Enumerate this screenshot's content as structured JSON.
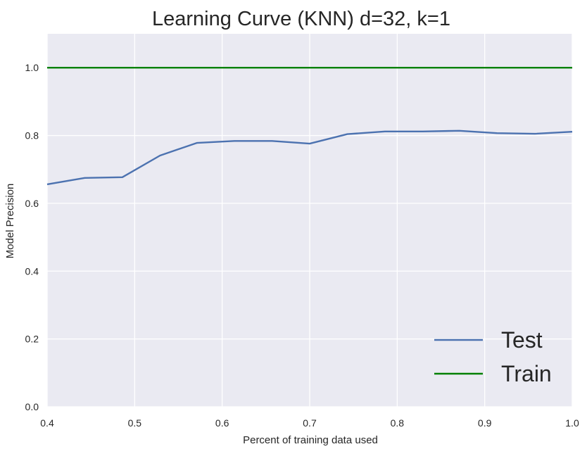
{
  "chart_data": {
    "type": "line",
    "title": "Learning Curve (KNN) d=32, k=1",
    "xlabel": "Percent of training data used",
    "ylabel": "Model Precision",
    "xlim": [
      0.4,
      1.0
    ],
    "ylim": [
      0.0,
      1.1
    ],
    "xticks": [
      "0.4",
      "0.5",
      "0.6",
      "0.7",
      "0.8",
      "0.9",
      "1.0"
    ],
    "yticks": [
      "0.0",
      "0.2",
      "0.4",
      "0.6",
      "0.8",
      "1.0"
    ],
    "grid": true,
    "legend_position": "bottom-right",
    "x": [
      0.4,
      0.443,
      0.486,
      0.529,
      0.571,
      0.614,
      0.657,
      0.7,
      0.743,
      0.786,
      0.829,
      0.871,
      0.914,
      0.957,
      1.0
    ],
    "series": [
      {
        "name": "Test",
        "color": "#4c72b0",
        "values": [
          0.656,
          0.675,
          0.677,
          0.741,
          0.778,
          0.784,
          0.784,
          0.776,
          0.804,
          0.812,
          0.812,
          0.814,
          0.807,
          0.805,
          0.811
        ]
      },
      {
        "name": "Train",
        "color": "#008000",
        "values": [
          1.0,
          1.0,
          1.0,
          1.0,
          1.0,
          1.0,
          1.0,
          1.0,
          1.0,
          1.0,
          1.0,
          1.0,
          1.0,
          1.0,
          1.0
        ]
      }
    ],
    "plot_background": "#eaeaf2",
    "grid_color": "#ffffff"
  }
}
